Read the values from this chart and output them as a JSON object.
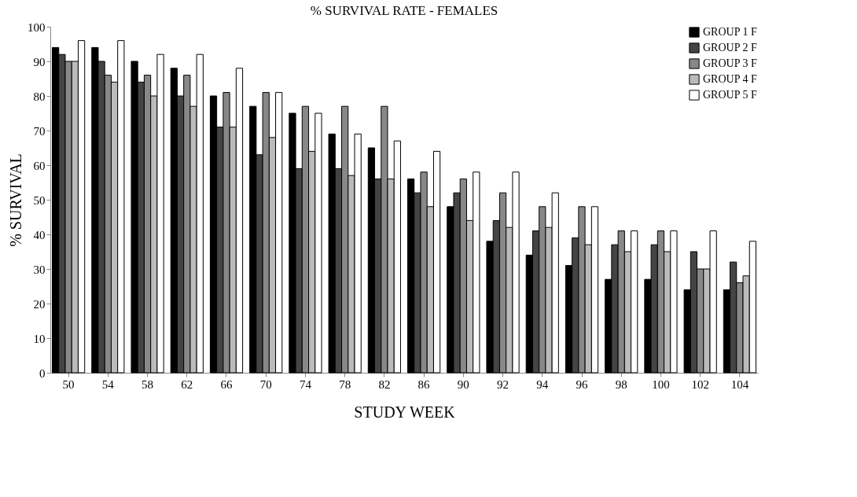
{
  "chart_data": {
    "type": "bar",
    "title": "% SURVIVAL RATE - FEMALES",
    "xlabel": "STUDY WEEK",
    "ylabel": "% SURVIVAL",
    "categories": [
      "50",
      "54",
      "58",
      "62",
      "66",
      "70",
      "74",
      "78",
      "82",
      "86",
      "90",
      "92",
      "94",
      "96",
      "98",
      "100",
      "102",
      "104"
    ],
    "series": [
      {
        "name": "GROUP 1 F",
        "color": "#000000",
        "values": [
          94,
          94,
          90,
          88,
          80,
          77,
          75,
          69,
          65,
          56,
          48,
          38,
          34,
          31,
          27,
          27,
          24,
          24
        ]
      },
      {
        "name": "GROUP 2 F",
        "color": "#444444",
        "values": [
          92,
          90,
          84,
          80,
          71,
          63,
          59,
          59,
          56,
          52,
          52,
          44,
          41,
          39,
          37,
          37,
          35,
          32
        ]
      },
      {
        "name": "GROUP 3 F",
        "color": "#888888",
        "values": [
          90,
          86,
          86,
          86,
          81,
          81,
          77,
          77,
          77,
          58,
          56,
          52,
          48,
          48,
          41,
          41,
          30,
          26
        ]
      },
      {
        "name": "GROUP 4 F",
        "color": "#bbbbbb",
        "values": [
          90,
          84,
          80,
          77,
          71,
          68,
          64,
          57,
          56,
          48,
          44,
          42,
          42,
          37,
          35,
          35,
          30,
          28
        ]
      },
      {
        "name": "GROUP 5 F",
        "color": "#ffffff",
        "values": [
          96,
          96,
          92,
          92,
          88,
          81,
          75,
          69,
          67,
          64,
          58,
          58,
          52,
          48,
          41,
          41,
          41,
          38
        ]
      }
    ],
    "ylim": [
      0,
      100
    ],
    "yticks": [
      0,
      10,
      20,
      30,
      40,
      50,
      60,
      70,
      80,
      90,
      100
    ],
    "grid": false,
    "legend": "top right"
  }
}
